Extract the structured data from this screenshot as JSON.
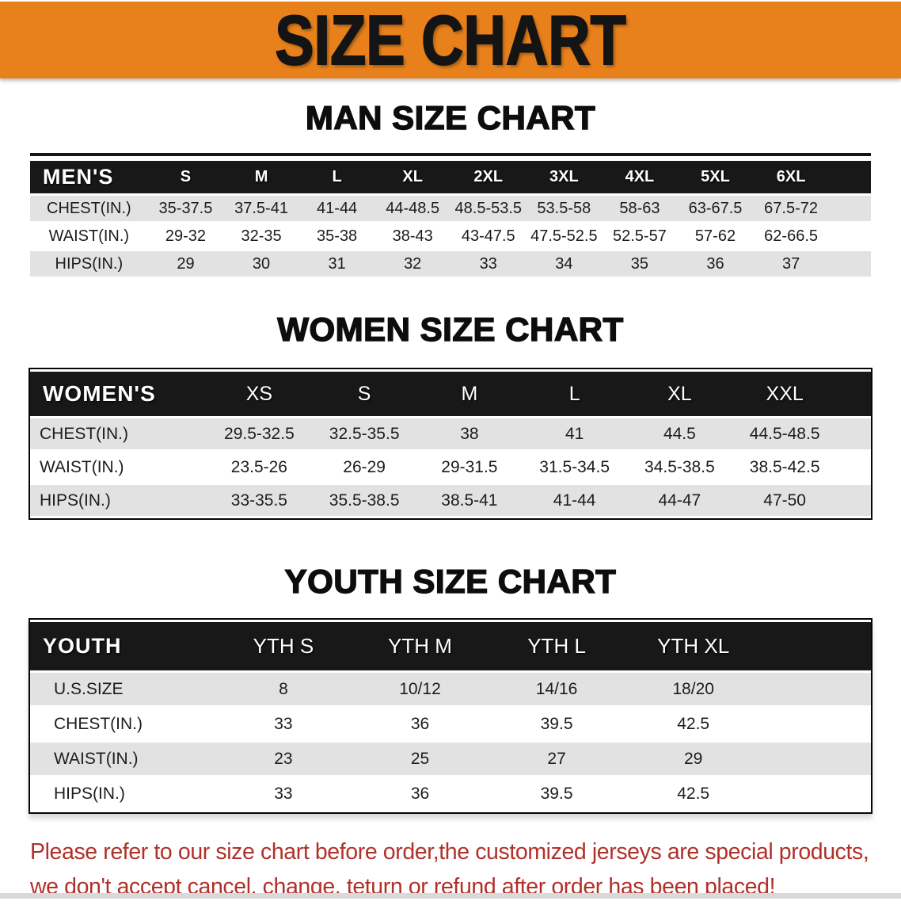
{
  "banner": {
    "title": "SIZE CHART"
  },
  "headings": {
    "men": "MAN SIZE CHART",
    "women": "WOMEN SIZE CHART",
    "youth": "YOUTH SIZE CHART"
  },
  "tables": {
    "men": {
      "label": "MEN'S",
      "sizes": [
        "S",
        "M",
        "L",
        "XL",
        "2XL",
        "3XL",
        "4XL",
        "5XL",
        "6XL"
      ],
      "rows": [
        {
          "label": "CHEST(IN.)",
          "values": [
            "35-37.5",
            "37.5-41",
            "41-44",
            "44-48.5",
            "48.5-53.5",
            "53.5-58",
            "58-63",
            "63-67.5",
            "67.5-72"
          ]
        },
        {
          "label": "WAIST(IN.)",
          "values": [
            "29-32",
            "32-35",
            "35-38",
            "38-43",
            "43-47.5",
            "47.5-52.5",
            "52.5-57",
            "57-62",
            "62-66.5"
          ]
        },
        {
          "label": "HIPS(IN.)",
          "values": [
            "29",
            "30",
            "31",
            "32",
            "33",
            "34",
            "35",
            "36",
            "37"
          ]
        }
      ]
    },
    "women": {
      "label": "WOMEN'S",
      "sizes": [
        "XS",
        "S",
        "M",
        "L",
        "XL",
        "XXL"
      ],
      "rows": [
        {
          "label": "CHEST(IN.)",
          "values": [
            "29.5-32.5",
            "32.5-35.5",
            "38",
            "41",
            "44.5",
            "44.5-48.5"
          ]
        },
        {
          "label": "WAIST(IN.)",
          "values": [
            "23.5-26",
            "26-29",
            "29-31.5",
            "31.5-34.5",
            "34.5-38.5",
            "38.5-42.5"
          ]
        },
        {
          "label": "HIPS(IN.)",
          "values": [
            "33-35.5",
            "35.5-38.5",
            "38.5-41",
            "41-44",
            "44-47",
            "47-50"
          ]
        }
      ]
    },
    "youth": {
      "label": "YOUTH",
      "sizes": [
        "YTH S",
        "YTH M",
        "YTH L",
        "YTH XL"
      ],
      "rows": [
        {
          "label": "U.S.SIZE",
          "values": [
            "8",
            "10/12",
            "14/16",
            "18/20"
          ]
        },
        {
          "label": "CHEST(IN.)",
          "values": [
            "33",
            "36",
            "39.5",
            "42.5"
          ]
        },
        {
          "label": "WAIST(IN.)",
          "values": [
            "23",
            "25",
            "27",
            "29"
          ]
        },
        {
          "label": "HIPS(IN.)",
          "values": [
            "33",
            "36",
            "39.5",
            "42.5"
          ]
        }
      ]
    }
  },
  "footer": {
    "line1": "Please refer to our size chart before order,the customized jerseys are special products,",
    "line2": "we don't accept cancel, change, teturn or refund after order has been placed!"
  },
  "colors": {
    "banner_orange": "#e8811b",
    "header_black": "#181818",
    "row_gray": "#e2e2e2",
    "footer_red": "#b03129"
  }
}
